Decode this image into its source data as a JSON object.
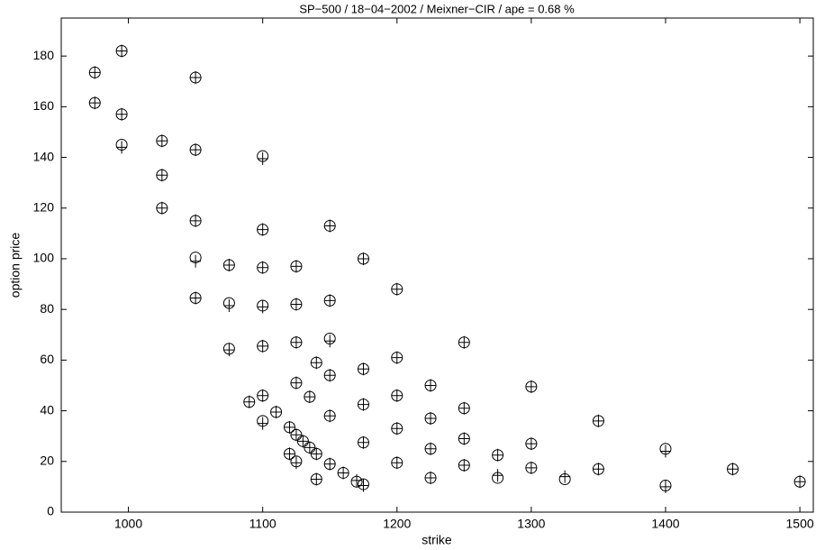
{
  "chart_data": {
    "type": "scatter",
    "title": "SP−500 / 18−04−2002 / Meixner−CIR / ape = 0.68 %",
    "x_label": "strike",
    "y_label": "option price",
    "xlim": [
      950,
      1510
    ],
    "ylim": [
      0,
      195
    ],
    "xticks": [
      1000,
      1100,
      1200,
      1300,
      1400,
      1500
    ],
    "yticks": [
      0,
      20,
      40,
      60,
      80,
      100,
      120,
      140,
      160,
      180
    ],
    "grid": false,
    "x": [
      975,
      975,
      995,
      995,
      995,
      1025,
      1025,
      1025,
      1050,
      1050,
      1050,
      1050,
      1050,
      1075,
      1075,
      1075,
      1090,
      1100,
      1100,
      1100,
      1100,
      1100,
      1100,
      1100,
      1110,
      1120,
      1120,
      1125,
      1125,
      1125,
      1125,
      1125,
      1125,
      1130,
      1135,
      1135,
      1140,
      1140,
      1140,
      1150,
      1150,
      1150,
      1150,
      1150,
      1150,
      1160,
      1170,
      1175,
      1175,
      1175,
      1175,
      1175,
      1200,
      1200,
      1200,
      1200,
      1200,
      1225,
      1225,
      1225,
      1225,
      1250,
      1250,
      1250,
      1250,
      1275,
      1275,
      1300,
      1300,
      1300,
      1325,
      1350,
      1350,
      1400,
      1400,
      1450,
      1500
    ],
    "series": [
      {
        "marker": "circle",
        "color": "#000000",
        "values": [
          173.5,
          161.5,
          182,
          157,
          145,
          146.5,
          133,
          120,
          171.5,
          143,
          115,
          100.5,
          84.5,
          97.5,
          82.5,
          64.5,
          43.5,
          140.5,
          111.5,
          96.5,
          81.5,
          65.5,
          46,
          36,
          39.5,
          33.5,
          23,
          97,
          82,
          67,
          51,
          30.5,
          20,
          28,
          45.5,
          25.5,
          59,
          23,
          13,
          113,
          83.5,
          68.5,
          54,
          38,
          19,
          15.5,
          12,
          100,
          56.5,
          42.5,
          27.5,
          11,
          88,
          61,
          46,
          33,
          19.5,
          50,
          37,
          25,
          13.5,
          67,
          41,
          29,
          18.5,
          22.5,
          13.5,
          49.5,
          27,
          17.5,
          13,
          36,
          17,
          25,
          10.5,
          17,
          12
        ]
      },
      {
        "marker": "plus",
        "color": "#000000",
        "values": [
          173.5,
          161.5,
          182,
          157,
          144,
          146.5,
          133,
          120,
          171.5,
          143,
          115,
          99,
          84.5,
          97.5,
          81.5,
          64,
          43.5,
          139.5,
          111.5,
          96.5,
          81,
          65.5,
          46,
          35,
          39.5,
          33.5,
          23,
          97,
          82,
          67,
          51,
          30.5,
          19.5,
          28,
          45.5,
          25.5,
          59,
          23,
          13,
          113,
          83.5,
          67.5,
          54,
          38,
          19,
          15.5,
          12.5,
          100,
          56.5,
          42.5,
          27.5,
          10.5,
          88,
          61,
          46,
          33,
          19.5,
          50,
          37,
          25,
          13.5,
          67,
          41,
          29,
          18.5,
          22.5,
          14.5,
          49.5,
          27,
          17.5,
          14,
          36,
          17,
          24,
          10,
          17,
          12
        ]
      }
    ]
  }
}
